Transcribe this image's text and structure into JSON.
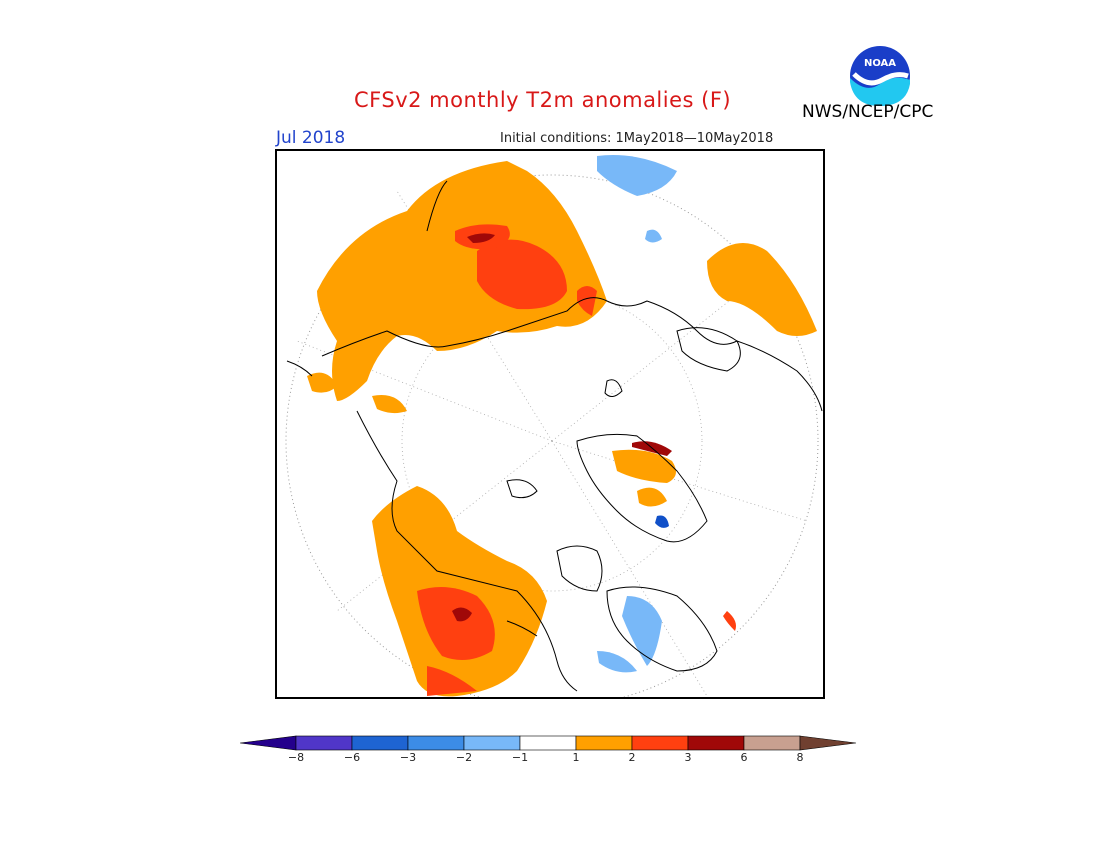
{
  "title": "CFSv2 monthly T2m anomalies (F)",
  "month_label": "Jul 2018",
  "initial_conditions": "Initial conditions: 1May2018—10May2018",
  "agency": "NWS/NCEP/CPC",
  "logo_text": "NOAA",
  "colors": {
    "title": "#d81818",
    "month": "#2244cc",
    "orange": "#ffa000",
    "red_orange": "#ff4010",
    "dark_red": "#a00808",
    "light_blue": "#78b8f8",
    "blue": "#4090f0",
    "dark_blue": "#1050c8"
  },
  "colorbar": {
    "ticks": [
      "−8",
      "−6",
      "−3",
      "−2",
      "−1",
      "1",
      "2",
      "3",
      "6",
      "8"
    ],
    "bins": [
      {
        "color": "#24008c",
        "range": "below -8"
      },
      {
        "color": "#5036c8",
        "range": "-8 to -6"
      },
      {
        "color": "#1e64d2",
        "range": "-6 to -3"
      },
      {
        "color": "#3c8ce6",
        "range": "-3 to -2"
      },
      {
        "color": "#78b8f8",
        "range": "-2 to -1"
      },
      {
        "color": "#ffffff",
        "range": "-1 to 1"
      },
      {
        "color": "#ffa000",
        "range": "1 to 2"
      },
      {
        "color": "#ff4010",
        "range": "2 to 3"
      },
      {
        "color": "#a00808",
        "range": "3 to 6"
      },
      {
        "color": "#c8a090",
        "range": "6 to 8"
      },
      {
        "color": "#704030",
        "range": "above 8"
      }
    ]
  }
}
